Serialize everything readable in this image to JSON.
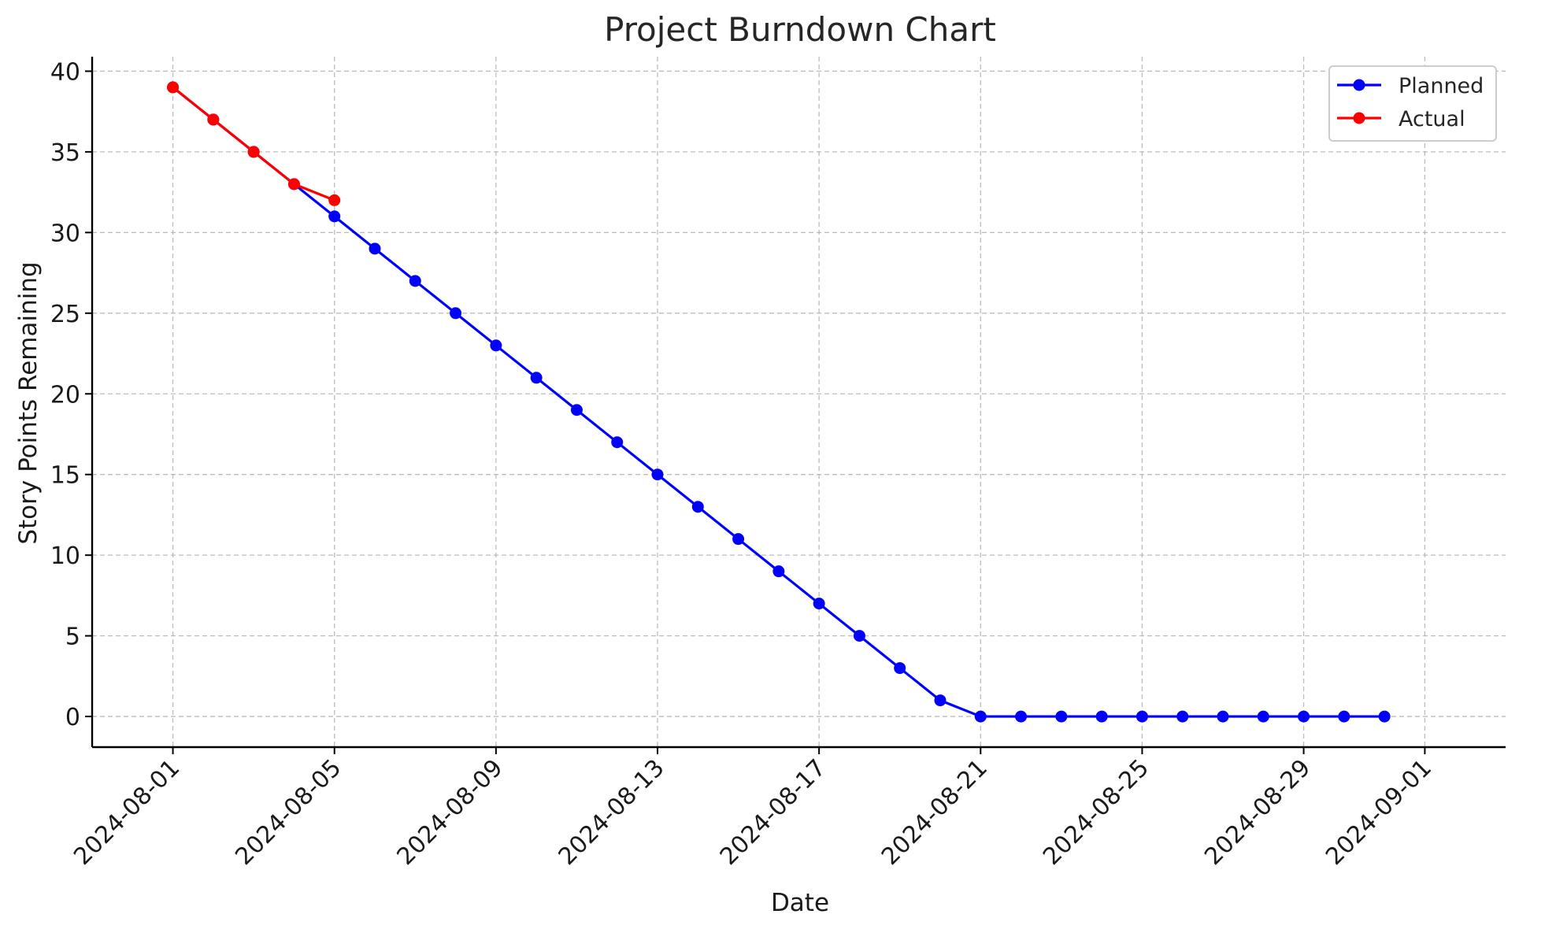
{
  "chart_data": {
    "type": "line",
    "title": "Project Burndown Chart",
    "xlabel": "Date",
    "ylabel": "Story Points Remaining",
    "xlim": [
      "2024-07-30",
      "2024-09-03"
    ],
    "ylim": [
      -1.9,
      40.9
    ],
    "x_ticks": [
      "2024-08-01",
      "2024-08-05",
      "2024-08-09",
      "2024-08-13",
      "2024-08-17",
      "2024-08-21",
      "2024-08-25",
      "2024-08-29",
      "2024-09-01"
    ],
    "y_ticks": [
      0,
      5,
      10,
      15,
      20,
      25,
      30,
      35,
      40
    ],
    "grid": true,
    "legend_position": "top-right",
    "series": [
      {
        "name": "Planned",
        "color": "#0000ff",
        "marker": "circle",
        "x": [
          "2024-08-01",
          "2024-08-02",
          "2024-08-03",
          "2024-08-04",
          "2024-08-05",
          "2024-08-06",
          "2024-08-07",
          "2024-08-08",
          "2024-08-09",
          "2024-08-10",
          "2024-08-11",
          "2024-08-12",
          "2024-08-13",
          "2024-08-14",
          "2024-08-15",
          "2024-08-16",
          "2024-08-17",
          "2024-08-18",
          "2024-08-19",
          "2024-08-20",
          "2024-08-21",
          "2024-08-22",
          "2024-08-23",
          "2024-08-24",
          "2024-08-25",
          "2024-08-26",
          "2024-08-27",
          "2024-08-28",
          "2024-08-29",
          "2024-08-30",
          "2024-08-31"
        ],
        "values": [
          39,
          37,
          35,
          33,
          31,
          29,
          27,
          25,
          23,
          21,
          19,
          17,
          15,
          13,
          11,
          9,
          7,
          5,
          3,
          1,
          0,
          0,
          0,
          0,
          0,
          0,
          0,
          0,
          0,
          0,
          0
        ]
      },
      {
        "name": "Actual",
        "color": "#ff0000",
        "marker": "circle",
        "x": [
          "2024-08-01",
          "2024-08-02",
          "2024-08-03",
          "2024-08-04",
          "2024-08-05"
        ],
        "values": [
          39,
          37,
          35,
          33,
          32
        ]
      }
    ]
  }
}
